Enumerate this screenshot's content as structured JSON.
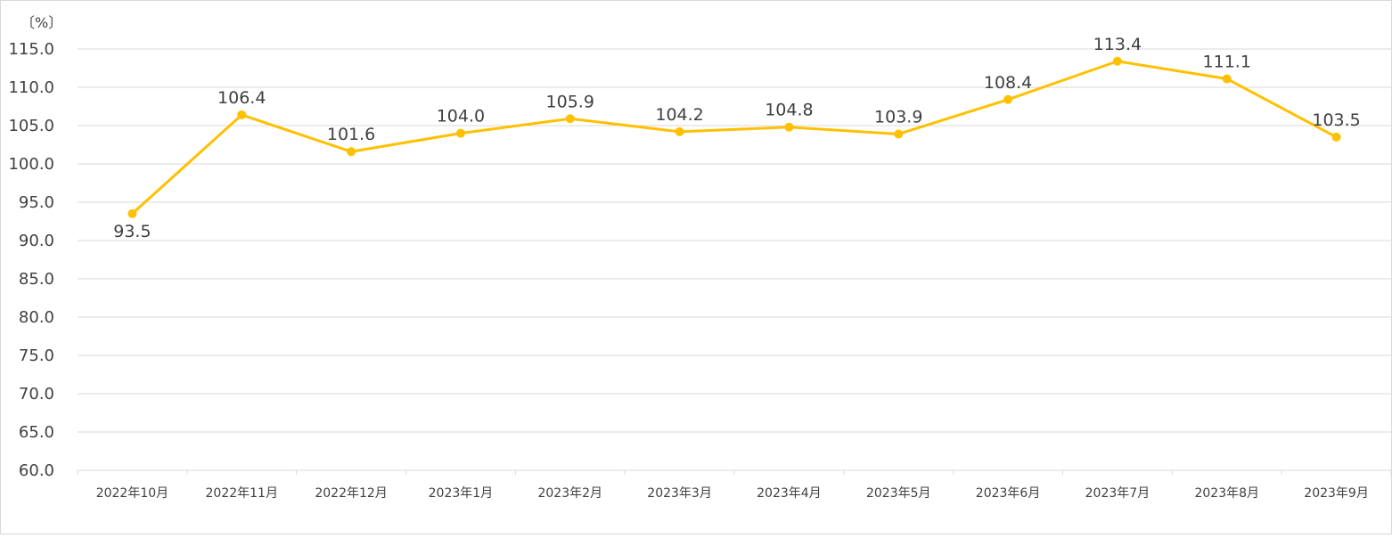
{
  "chart_data": {
    "type": "line",
    "unit_label": "〔%〕",
    "categories": [
      "2022年10月",
      "2022年11月",
      "2022年12月",
      "2023年1月",
      "2023年2月",
      "2023年3月",
      "2023年4月",
      "2023年5月",
      "2023年6月",
      "2023年7月",
      "2023年8月",
      "2023年9月"
    ],
    "series": [
      {
        "values": [
          93.5,
          106.4,
          101.6,
          104.0,
          105.9,
          104.2,
          104.8,
          103.9,
          108.4,
          113.4,
          111.1,
          103.5
        ],
        "labels": [
          "93.5",
          "106.4",
          "101.6",
          "104.0",
          "105.9",
          "104.2",
          "104.8",
          "103.9",
          "108.4",
          "113.4",
          "111.1",
          "103.5"
        ],
        "color": "#FFC000"
      }
    ],
    "ylim": [
      60,
      115
    ],
    "yticks": [
      "60.0",
      "65.0",
      "70.0",
      "75.0",
      "80.0",
      "85.0",
      "90.0",
      "95.0",
      "100.0",
      "105.0",
      "110.0",
      "115.0"
    ],
    "grid": true,
    "legend": "none"
  }
}
